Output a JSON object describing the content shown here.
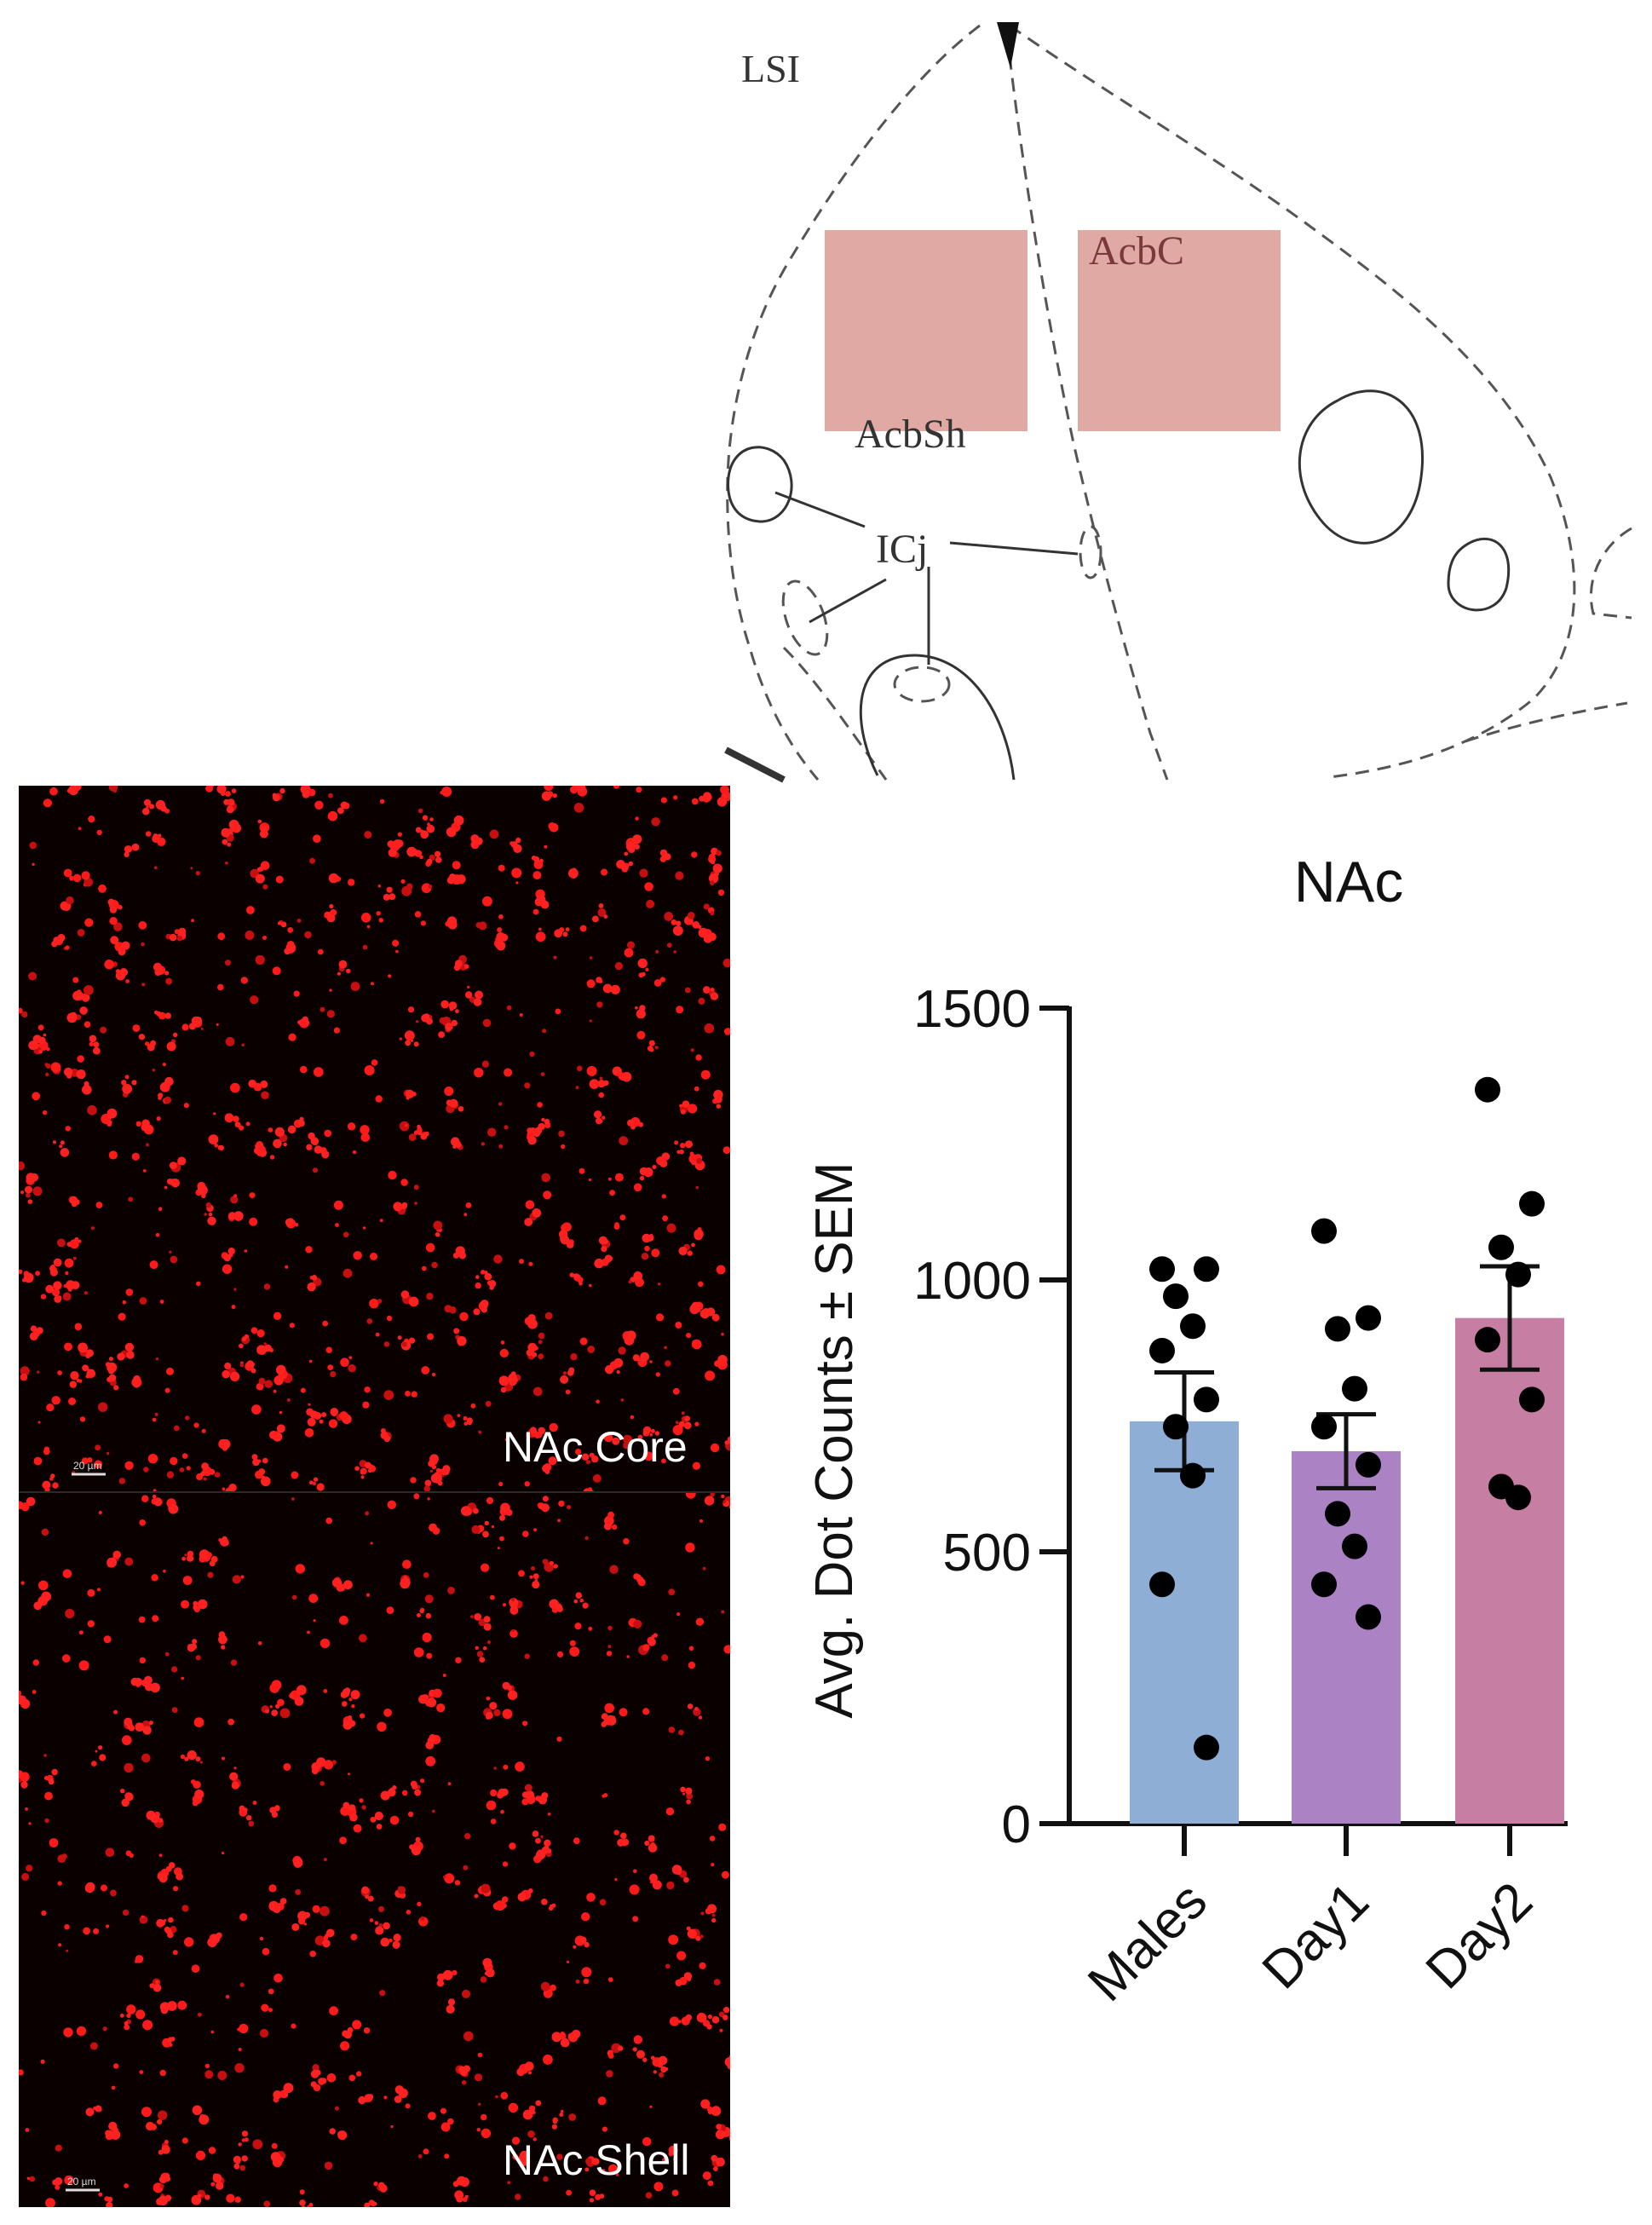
{
  "atlas": {
    "labels": {
      "lsi": "LSI",
      "acbc": "AcbC",
      "acbsh": "AcbSh",
      "icj": "ICj"
    },
    "highlight_color": "#e0a9a3"
  },
  "micrographs": [
    {
      "label": "NAc Core",
      "scale": "20 µm",
      "seed": 17,
      "density": 720
    },
    {
      "label": "NAc Shell",
      "scale": "20 µm",
      "seed": 91,
      "density": 560
    }
  ],
  "chart_data": {
    "type": "bar",
    "title": "NAc",
    "ylabel": "Avg. Dot Counts ± SEM",
    "xlabel": "",
    "ylim": [
      0,
      1500
    ],
    "yticks": [
      0,
      500,
      1000,
      1500
    ],
    "categories": [
      "Males",
      "Day1",
      "Day2"
    ],
    "values": [
      740,
      685,
      930
    ],
    "sem": [
      90,
      68,
      95
    ],
    "colors": [
      "#8eaed6",
      "#ab82c4",
      "#c67fa2"
    ],
    "points": [
      [
        1020,
        1020,
        970,
        915,
        870,
        780,
        730,
        640,
        440,
        140
      ],
      [
        1090,
        930,
        910,
        800,
        730,
        660,
        570,
        510,
        440,
        380
      ],
      [
        1350,
        1140,
        1060,
        1010,
        890,
        780,
        620,
        600
      ]
    ]
  }
}
